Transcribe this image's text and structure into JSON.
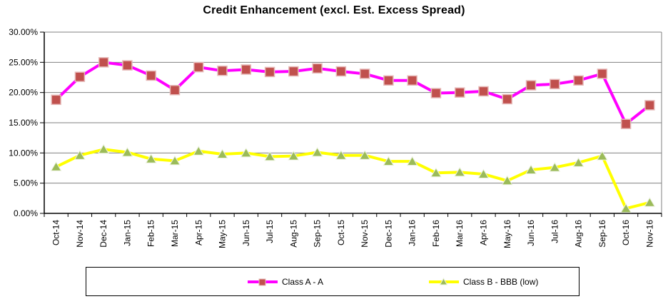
{
  "title": "Credit Enhancement (excl. Est. Excess Spread)",
  "chart_data": {
    "type": "line",
    "title": "Credit Enhancement (excl. Est. Excess Spread)",
    "xlabel": "",
    "ylabel": "",
    "ylim": [
      0,
      30
    ],
    "y_step": 5,
    "grid": true,
    "legend_position": "bottom",
    "ytick_labels": [
      "30.00%",
      "25.00%",
      "20.00%",
      "15.00%",
      "10.00%",
      "5.00%",
      "0.00%"
    ],
    "categories": [
      "Oct-14",
      "Nov-14",
      "Dec-14",
      "Jan-15",
      "Feb-15",
      "Mar-15",
      "Apr-15",
      "May-15",
      "Jun-15",
      "Jul-15",
      "Aug-15",
      "Sep-15",
      "Oct-15",
      "Nov-15",
      "Dec-15",
      "Jan-16",
      "Feb-16",
      "Mar-16",
      "Apr-16",
      "May-16",
      "Jun-16",
      "Jul-16",
      "Aug-16",
      "Sep-16",
      "Oct-16",
      "Nov-16"
    ],
    "series": [
      {
        "name": "Class A - A",
        "marker": "square",
        "line_color": "#FF00FF",
        "marker_color": "#C0504D",
        "marker_outline": "#E6B9B8",
        "values": [
          18.8,
          22.6,
          25.0,
          24.5,
          22.8,
          20.4,
          24.2,
          23.6,
          23.8,
          23.4,
          23.5,
          24.0,
          23.5,
          23.1,
          22.0,
          22.0,
          19.9,
          20.0,
          20.2,
          18.9,
          21.2,
          21.4,
          22.0,
          23.1,
          14.8,
          17.9
        ]
      },
      {
        "name": "Class B - BBB (low)",
        "marker": "triangle",
        "line_color": "#FFFF00",
        "marker_color": "#9BBB59",
        "marker_outline": "#EBF1DE",
        "values": [
          7.7,
          9.6,
          10.6,
          10.1,
          9.0,
          8.7,
          10.3,
          9.8,
          10.0,
          9.4,
          9.5,
          10.1,
          9.6,
          9.6,
          8.6,
          8.6,
          6.7,
          6.8,
          6.5,
          5.4,
          7.2,
          7.6,
          8.4,
          9.5,
          0.8,
          1.8
        ]
      }
    ]
  },
  "colors": {
    "background": "#FFFFFF",
    "gridline": "#808080",
    "axis": "#000000",
    "text": "#000000"
  }
}
